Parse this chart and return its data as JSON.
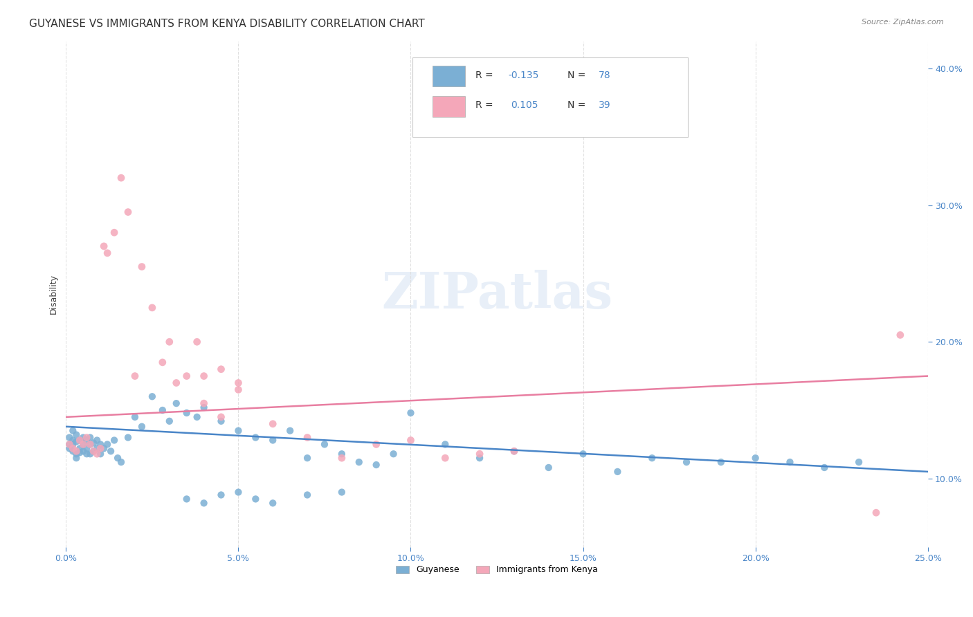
{
  "title": "GUYANESE VS IMMIGRANTS FROM KENYA DISABILITY CORRELATION CHART",
  "source": "Source: ZipAtlas.com",
  "ylabel": "Disability",
  "xlim": [
    0.0,
    0.25
  ],
  "ylim": [
    0.05,
    0.42
  ],
  "yticks": [
    0.1,
    0.2,
    0.3,
    0.4
  ],
  "xticks": [
    0.0,
    0.05,
    0.1,
    0.15,
    0.2,
    0.25
  ],
  "ytick_labels": [
    "10.0%",
    "20.0%",
    "30.0%",
    "40.0%"
  ],
  "xtick_labels": [
    "0.0%",
    "5.0%",
    "10.0%",
    "15.0%",
    "20.0%",
    "25.0%"
  ],
  "blue_color": "#7bafd4",
  "pink_color": "#f4a7b9",
  "blue_line_color": "#4a86c8",
  "pink_line_color": "#e87ea1",
  "axis_color": "#4a86c8",
  "blue_trend_y_start": 0.138,
  "blue_trend_y_end": 0.105,
  "pink_trend_y_start": 0.145,
  "pink_trend_y_end": 0.175,
  "background_color": "#ffffff",
  "grid_color": "#dddddd",
  "title_fontsize": 11,
  "axis_label_fontsize": 9,
  "tick_fontsize": 9,
  "source_fontsize": 8,
  "legend_R1": "R = -0.135",
  "legend_N1": "N = 78",
  "legend_R2": "R =  0.105",
  "legend_N2": "N = 39",
  "guyanese_x": [
    0.001,
    0.001,
    0.001,
    0.002,
    0.002,
    0.002,
    0.002,
    0.003,
    0.003,
    0.003,
    0.003,
    0.004,
    0.004,
    0.004,
    0.005,
    0.005,
    0.005,
    0.006,
    0.006,
    0.006,
    0.007,
    0.007,
    0.007,
    0.008,
    0.008,
    0.009,
    0.009,
    0.01,
    0.01,
    0.011,
    0.012,
    0.013,
    0.014,
    0.015,
    0.016,
    0.018,
    0.02,
    0.022,
    0.025,
    0.028,
    0.03,
    0.032,
    0.035,
    0.038,
    0.04,
    0.045,
    0.05,
    0.055,
    0.06,
    0.065,
    0.07,
    0.075,
    0.08,
    0.085,
    0.09,
    0.095,
    0.1,
    0.11,
    0.12,
    0.13,
    0.14,
    0.15,
    0.16,
    0.17,
    0.18,
    0.19,
    0.2,
    0.21,
    0.22,
    0.23,
    0.035,
    0.04,
    0.045,
    0.05,
    0.055,
    0.06,
    0.07,
    0.08
  ],
  "guyanese_y": [
    0.13,
    0.125,
    0.122,
    0.135,
    0.128,
    0.125,
    0.12,
    0.132,
    0.127,
    0.118,
    0.115,
    0.128,
    0.122,
    0.119,
    0.13,
    0.125,
    0.12,
    0.128,
    0.122,
    0.118,
    0.13,
    0.125,
    0.118,
    0.126,
    0.12,
    0.128,
    0.122,
    0.125,
    0.118,
    0.122,
    0.125,
    0.12,
    0.128,
    0.115,
    0.112,
    0.13,
    0.145,
    0.138,
    0.16,
    0.15,
    0.142,
    0.155,
    0.148,
    0.145,
    0.152,
    0.142,
    0.135,
    0.13,
    0.128,
    0.135,
    0.115,
    0.125,
    0.118,
    0.112,
    0.11,
    0.118,
    0.148,
    0.125,
    0.115,
    0.12,
    0.108,
    0.118,
    0.105,
    0.115,
    0.112,
    0.112,
    0.115,
    0.112,
    0.108,
    0.112,
    0.085,
    0.082,
    0.088,
    0.09,
    0.085,
    0.082,
    0.088,
    0.09
  ],
  "kenya_x": [
    0.001,
    0.002,
    0.003,
    0.004,
    0.005,
    0.006,
    0.007,
    0.008,
    0.009,
    0.01,
    0.011,
    0.012,
    0.014,
    0.016,
    0.018,
    0.02,
    0.022,
    0.025,
    0.028,
    0.03,
    0.032,
    0.035,
    0.038,
    0.04,
    0.045,
    0.05,
    0.06,
    0.07,
    0.08,
    0.09,
    0.1,
    0.11,
    0.12,
    0.13,
    0.04,
    0.045,
    0.05,
    0.235,
    0.242
  ],
  "kenya_y": [
    0.125,
    0.122,
    0.12,
    0.128,
    0.125,
    0.13,
    0.125,
    0.12,
    0.118,
    0.122,
    0.27,
    0.265,
    0.28,
    0.32,
    0.295,
    0.175,
    0.255,
    0.225,
    0.185,
    0.2,
    0.17,
    0.175,
    0.2,
    0.155,
    0.145,
    0.165,
    0.14,
    0.13,
    0.115,
    0.125,
    0.128,
    0.115,
    0.118,
    0.12,
    0.175,
    0.18,
    0.17,
    0.075,
    0.205
  ]
}
